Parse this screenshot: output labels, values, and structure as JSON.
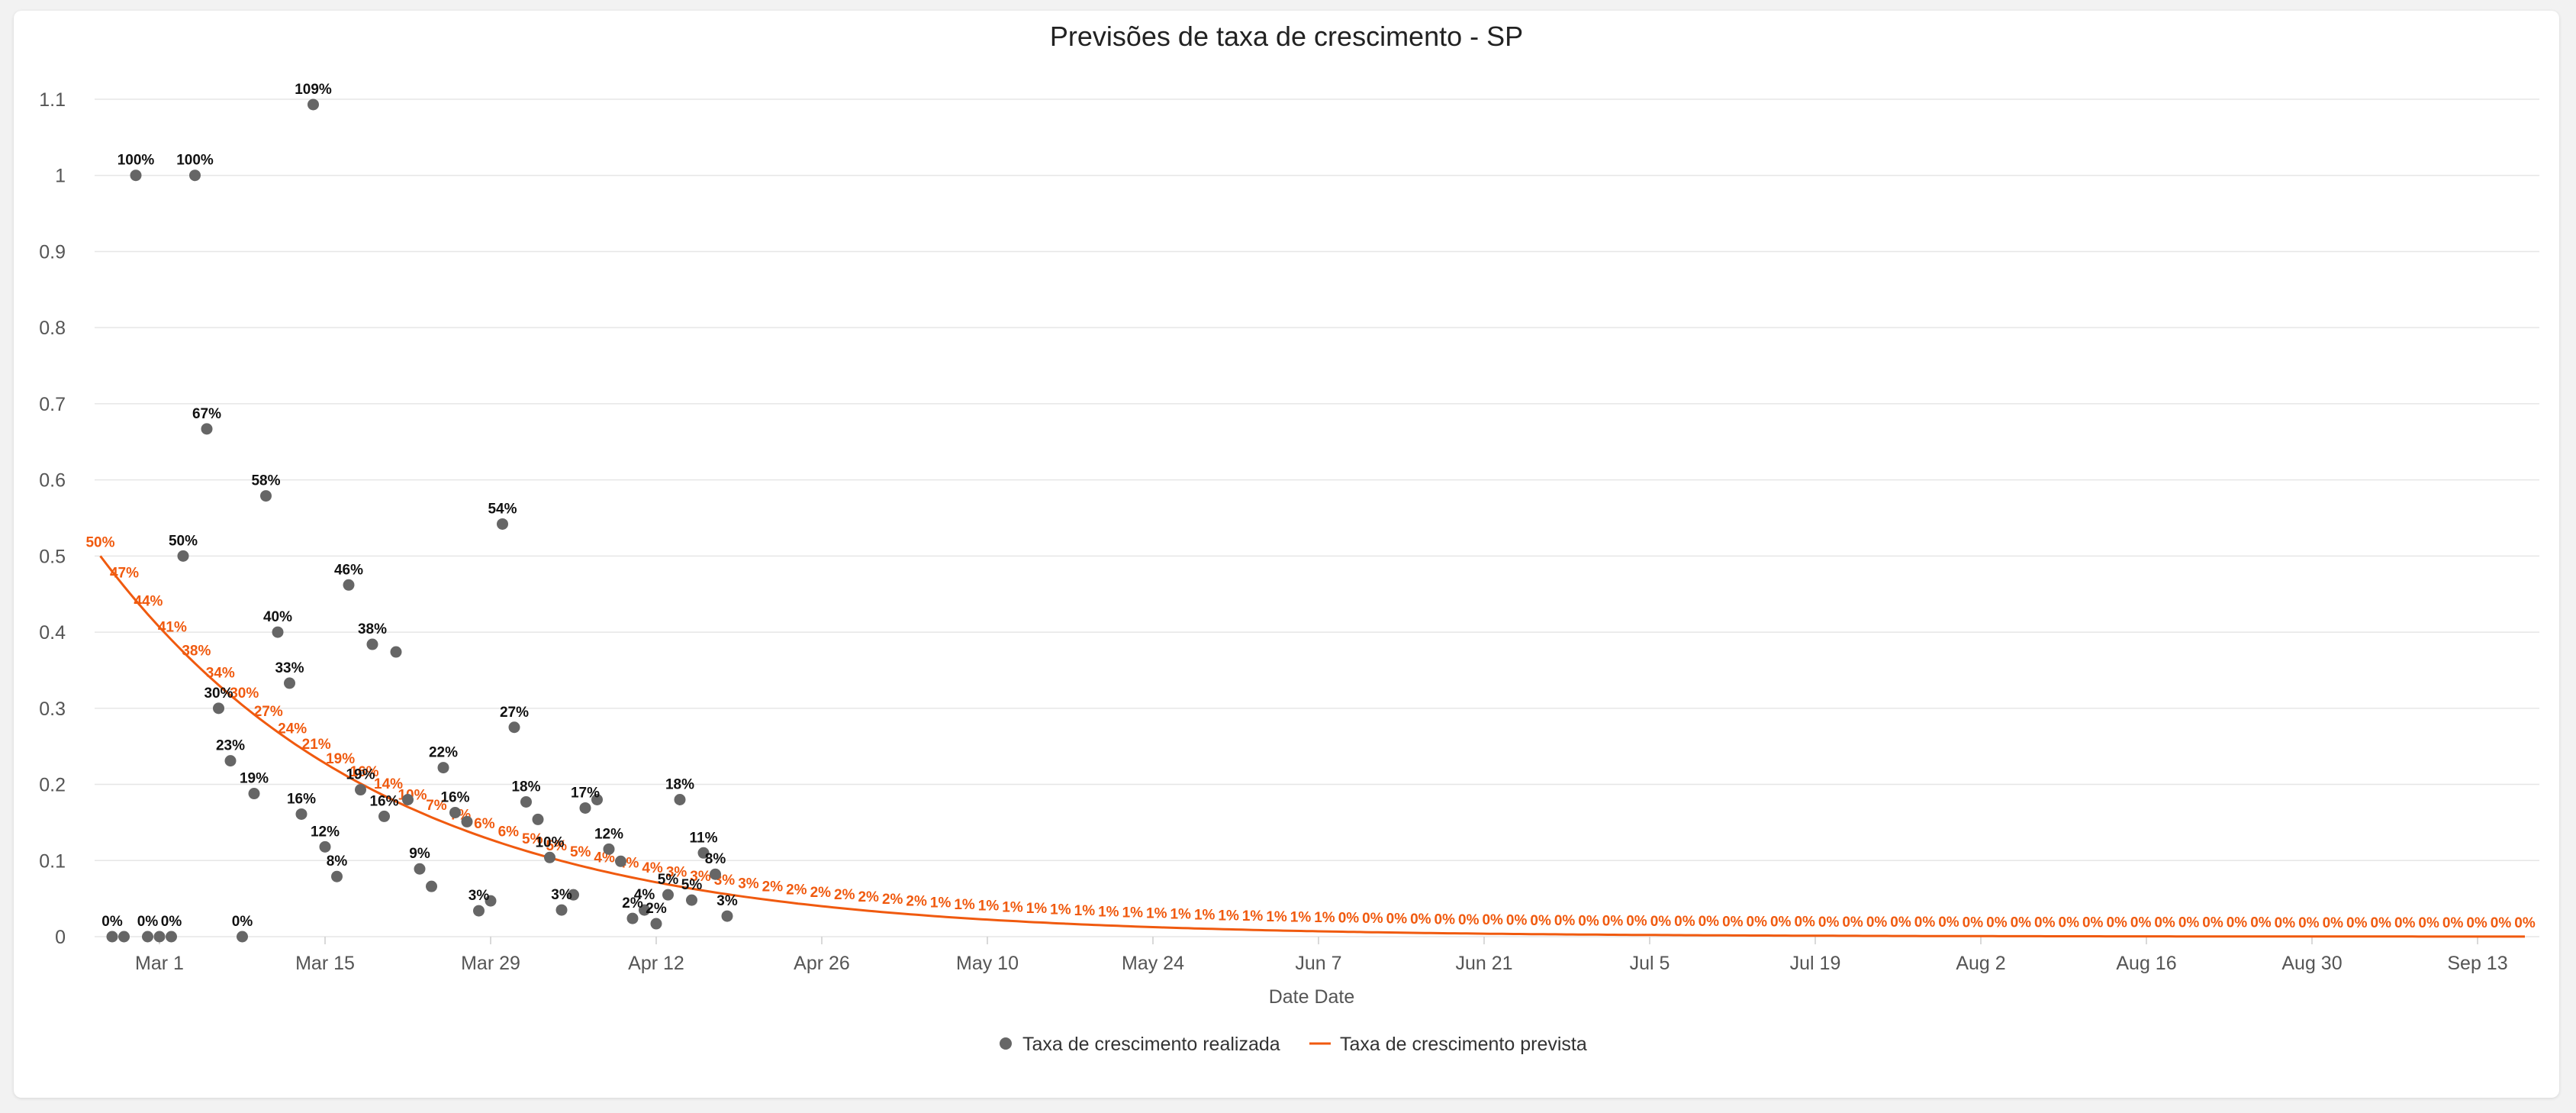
{
  "chart_data": {
    "type": "scatter+line",
    "title": "Previsões de taxa de crescimento - SP",
    "xlabel": "Date Date",
    "ylabel": "",
    "ylim": [
      0,
      1.1
    ],
    "y_ticks": [
      "0",
      "0.1",
      "0.2",
      "0.3",
      "0.4",
      "0.5",
      "0.6",
      "0.7",
      "0.8",
      "0.9",
      "1",
      "1.1"
    ],
    "x_ticks": [
      "Mar 1",
      "Mar 15",
      "Mar 29",
      "Apr 12",
      "Apr 26",
      "May 10",
      "May 24",
      "Jun 7",
      "Jun 21",
      "Jul 5",
      "Jul 19",
      "Aug 2",
      "Aug 16",
      "Aug 30",
      "Sep 13"
    ],
    "grid": "horizontal",
    "legend_position": "bottom",
    "colors": {
      "actual": "#666666",
      "predicted": "#f05a0f",
      "grid": "#e6e6e6"
    },
    "series": [
      {
        "name": "Taxa de crescimento realizada",
        "kind": "scatter",
        "points": [
          {
            "x": "Feb 26",
            "y": 0,
            "label": "0%"
          },
          {
            "x": "Feb 27",
            "y": 0,
            "label": ""
          },
          {
            "x": "Feb 28",
            "y": 1.0,
            "label": "100%"
          },
          {
            "x": "Feb 29",
            "y": 0,
            "label": "0%"
          },
          {
            "x": "Mar 1",
            "y": 0,
            "label": ""
          },
          {
            "x": "Mar 2",
            "y": 0,
            "label": "0%"
          },
          {
            "x": "Mar 3",
            "y": 0.5,
            "label": "50%"
          },
          {
            "x": "Mar 4",
            "y": 1.0,
            "label": "100%"
          },
          {
            "x": "Mar 5",
            "y": 0.667,
            "label": "67%"
          },
          {
            "x": "Mar 6",
            "y": 0.3,
            "label": "30%"
          },
          {
            "x": "Mar 7",
            "y": 0.231,
            "label": "23%"
          },
          {
            "x": "Mar 8",
            "y": 0,
            "label": "0%"
          },
          {
            "x": "Mar 9",
            "y": 0.188,
            "label": "19%"
          },
          {
            "x": "Mar 10",
            "y": 0.579,
            "label": "58%"
          },
          {
            "x": "Mar 11",
            "y": 0.4,
            "label": "40%"
          },
          {
            "x": "Mar 12",
            "y": 0.333,
            "label": "33%"
          },
          {
            "x": "Mar 13",
            "y": 0.161,
            "label": "16%"
          },
          {
            "x": "Mar 14",
            "y": 1.093,
            "label": "109%"
          },
          {
            "x": "Mar 15",
            "y": 0.118,
            "label": "12%"
          },
          {
            "x": "Mar 16",
            "y": 0.079,
            "label": "8%"
          },
          {
            "x": "Mar 17",
            "y": 0.462,
            "label": "46%"
          },
          {
            "x": "Mar 18",
            "y": 0.193,
            "label": "19%"
          },
          {
            "x": "Mar 19",
            "y": 0.384,
            "label": "38%"
          },
          {
            "x": "Mar 20",
            "y": 0.158,
            "label": "16%"
          },
          {
            "x": "Mar 21",
            "y": 0.374,
            "label": ""
          },
          {
            "x": "Mar 22",
            "y": 0.18,
            "label": ""
          },
          {
            "x": "Mar 23",
            "y": 0.089,
            "label": "9%"
          },
          {
            "x": "Mar 24",
            "y": 0.066,
            "label": ""
          },
          {
            "x": "Mar 25",
            "y": 0.222,
            "label": "22%"
          },
          {
            "x": "Mar 26",
            "y": 0.163,
            "label": "16%"
          },
          {
            "x": "Mar 27",
            "y": 0.151,
            "label": ""
          },
          {
            "x": "Mar 28",
            "y": 0.034,
            "label": "3%"
          },
          {
            "x": "Mar 29",
            "y": 0.047,
            "label": ""
          },
          {
            "x": "Mar 30",
            "y": 0.542,
            "label": "54%"
          },
          {
            "x": "Mar 31",
            "y": 0.275,
            "label": "27%"
          },
          {
            "x": "Apr 1",
            "y": 0.177,
            "label": "18%"
          },
          {
            "x": "Apr 2",
            "y": 0.154,
            "label": ""
          },
          {
            "x": "Apr 3",
            "y": 0.104,
            "label": "10%"
          },
          {
            "x": "Apr 4",
            "y": 0.035,
            "label": "3%"
          },
          {
            "x": "Apr 5",
            "y": 0.055,
            "label": ""
          },
          {
            "x": "Apr 6",
            "y": 0.169,
            "label": "17%"
          },
          {
            "x": "Apr 7",
            "y": 0.18,
            "label": ""
          },
          {
            "x": "Apr 8",
            "y": 0.115,
            "label": "12%"
          },
          {
            "x": "Apr 9",
            "y": 0.099,
            "label": ""
          },
          {
            "x": "Apr 10",
            "y": 0.024,
            "label": "2%"
          },
          {
            "x": "Apr 11",
            "y": 0.035,
            "label": "4%"
          },
          {
            "x": "Apr 12",
            "y": 0.017,
            "label": "2%"
          },
          {
            "x": "Apr 13",
            "y": 0.055,
            "label": "5%"
          },
          {
            "x": "Apr 14",
            "y": 0.18,
            "label": "18%"
          },
          {
            "x": "Apr 15",
            "y": 0.048,
            "label": "5%"
          },
          {
            "x": "Apr 16",
            "y": 0.11,
            "label": "11%"
          },
          {
            "x": "Apr 17",
            "y": 0.082,
            "label": "8%"
          },
          {
            "x": "Apr 18",
            "y": 0.027,
            "label": "3%"
          }
        ]
      },
      {
        "name": "Taxa de crescimento prevista",
        "kind": "line",
        "start_x": "Feb 25",
        "end_x": "Sep 17",
        "labels": [
          "50%",
          "47%",
          "44%",
          "41%",
          "38%",
          "34%",
          "30%",
          "27%",
          "24%",
          "21%",
          "19%",
          "16%",
          "14%",
          "10%",
          "7%",
          "7%",
          "6%",
          "6%",
          "5%",
          "5%",
          "5%",
          "4%",
          "4%",
          "4%",
          "3%",
          "3%",
          "3%",
          "3%",
          "2%",
          "2%",
          "2%",
          "2%",
          "2%",
          "2%",
          "2%",
          "1%",
          "1%",
          "1%",
          "1%",
          "1%",
          "1%",
          "1%",
          "1%",
          "1%",
          "1%",
          "1%",
          "1%",
          "1%",
          "1%",
          "1%",
          "1%",
          "1%",
          "0%",
          "0%",
          "0%",
          "0%",
          "0%",
          "0%",
          "0%",
          "0%",
          "0%",
          "0%",
          "0%",
          "0%",
          "0%",
          "0%",
          "0%",
          "0%",
          "0%",
          "0%",
          "0%",
          "0%",
          "0%",
          "0%",
          "0%",
          "0%",
          "0%",
          "0%",
          "0%",
          "0%",
          "0%",
          "0%",
          "0%",
          "0%",
          "0%",
          "0%",
          "0%",
          "0%",
          "0%",
          "0%",
          "0%",
          "0%",
          "0%",
          "0%",
          "0%",
          "0%",
          "0%",
          "0%",
          "0%",
          "0%",
          "0%",
          "0%"
        ]
      }
    ]
  }
}
